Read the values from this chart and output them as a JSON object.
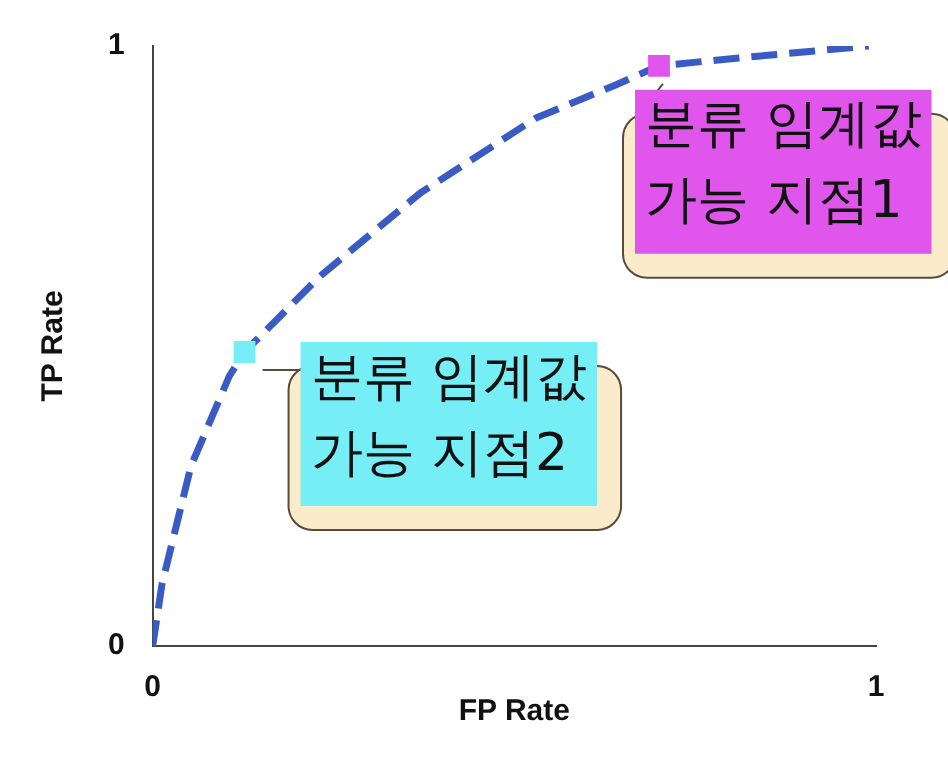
{
  "chart_data": {
    "type": "line",
    "xlabel": "FP Rate",
    "ylabel": "TP Rate",
    "xlim": [
      0,
      1
    ],
    "ylim": [
      0,
      1
    ],
    "xticks": [
      0,
      1
    ],
    "yticks": [
      0,
      1
    ],
    "grid": false,
    "legend": false,
    "series": [
      {
        "color": "#3a5bc4",
        "line_style": "dashed",
        "marker": "none",
        "x": [
          0,
          0.013,
          0.053,
          0.106,
          0.127,
          0.23,
          0.37,
          0.53,
          0.64,
          0.7,
          0.81,
          0.99
        ],
        "values": [
          0,
          0.104,
          0.3,
          0.45,
          0.49,
          0.615,
          0.755,
          0.88,
          0.935,
          0.967,
          0.98,
          1.0
        ]
      },
      {
        "type": "scatter",
        "marker": "square",
        "colors": [
          "#e055ec",
          "#76eef6"
        ],
        "x": [
          0.7,
          0.127
        ],
        "values": [
          0.967,
          0.49
        ]
      }
    ],
    "annotations": [
      {
        "text": "분류 임계값\n가능 지점1",
        "x": 0.7,
        "y": 0.967
      },
      {
        "text": "분류 임계값\n가능 지점2",
        "x": 0.127,
        "y": 0.49
      }
    ]
  }
}
